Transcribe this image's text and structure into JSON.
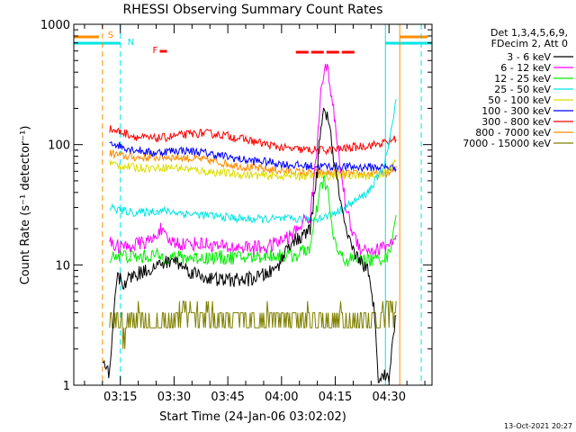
{
  "chart_data": {
    "type": "line",
    "title": "RHESSI Observing Summary Count Rates",
    "xlabel": "Start Time (24-Jan-06 03:02:02)",
    "ylabel": "Count Rate (s⁻¹ detector⁻¹)",
    "yscale": "log",
    "ylim": [
      1,
      1000
    ],
    "xlim_minutes_after_start": [
      0,
      100
    ],
    "xticks": [
      {
        "label": "03:15",
        "min": 13
      },
      {
        "label": "03:30",
        "min": 28
      },
      {
        "label": "03:45",
        "min": 43
      },
      {
        "label": "04:00",
        "min": 58
      },
      {
        "label": "04:15",
        "min": 73
      },
      {
        "label": "04:30",
        "min": 88
      }
    ],
    "yticks": [
      {
        "label": "1",
        "value": 1
      },
      {
        "label": "10",
        "value": 10
      },
      {
        "label": "100",
        "value": 100
      },
      {
        "label": "1000",
        "value": 1000
      }
    ],
    "legend": {
      "placement": "right",
      "header": [
        "Det 1,3,4,5,6,9,",
        "FDecim 2, Att 0"
      ]
    },
    "flags": [
      {
        "label": "S",
        "color": "#ff8c00"
      },
      {
        "label": "N",
        "color": "#00e5e5"
      },
      {
        "label": "F",
        "color": "#ff0000"
      }
    ],
    "series": [
      {
        "name": "3 - 6 keV",
        "color": "#000000",
        "points": [
          [
            8,
            1.5
          ],
          [
            10,
            1.2
          ],
          [
            12,
            8
          ],
          [
            14,
            7
          ],
          [
            16,
            8
          ],
          [
            20,
            9
          ],
          [
            24,
            10
          ],
          [
            28,
            11
          ],
          [
            32,
            9
          ],
          [
            36,
            8
          ],
          [
            40,
            7.5
          ],
          [
            44,
            7.5
          ],
          [
            48,
            7.5
          ],
          [
            52,
            8
          ],
          [
            56,
            9
          ],
          [
            58,
            11
          ],
          [
            60,
            15
          ],
          [
            62,
            16
          ],
          [
            64,
            17
          ],
          [
            66,
            20
          ],
          [
            68,
            60
          ],
          [
            69,
            150
          ],
          [
            70,
            200
          ],
          [
            71,
            160
          ],
          [
            72,
            100
          ],
          [
            74,
            40
          ],
          [
            76,
            18
          ],
          [
            78,
            13
          ],
          [
            80,
            11
          ],
          [
            82,
            9
          ],
          [
            84,
            4
          ],
          [
            85,
            1.2
          ],
          [
            88,
            1.2
          ],
          [
            90,
            4
          ]
        ]
      },
      {
        "name": "6 - 12 keV",
        "color": "#ff00ff",
        "points": [
          [
            10,
            15
          ],
          [
            14,
            14
          ],
          [
            18,
            15
          ],
          [
            22,
            16
          ],
          [
            24,
            20
          ],
          [
            26,
            16
          ],
          [
            30,
            15
          ],
          [
            36,
            15
          ],
          [
            42,
            14
          ],
          [
            48,
            14
          ],
          [
            54,
            14
          ],
          [
            58,
            16
          ],
          [
            60,
            17
          ],
          [
            62,
            19
          ],
          [
            64,
            23
          ],
          [
            66,
            25
          ],
          [
            68,
            100
          ],
          [
            69,
            300
          ],
          [
            70,
            450
          ],
          [
            71,
            400
          ],
          [
            72,
            250
          ],
          [
            74,
            80
          ],
          [
            76,
            30
          ],
          [
            78,
            18
          ],
          [
            80,
            14
          ],
          [
            84,
            13
          ],
          [
            88,
            15
          ],
          [
            90,
            16
          ]
        ]
      },
      {
        "name": "12 - 25 keV",
        "color": "#00ee00",
        "points": [
          [
            10,
            12
          ],
          [
            14,
            12
          ],
          [
            18,
            11.5
          ],
          [
            22,
            12
          ],
          [
            26,
            11.5
          ],
          [
            30,
            11.5
          ],
          [
            36,
            11.5
          ],
          [
            42,
            11.5
          ],
          [
            48,
            11.5
          ],
          [
            54,
            12
          ],
          [
            58,
            12
          ],
          [
            62,
            12
          ],
          [
            66,
            14
          ],
          [
            68,
            30
          ],
          [
            69,
            45
          ],
          [
            70,
            50
          ],
          [
            71,
            40
          ],
          [
            72,
            20
          ],
          [
            74,
            12
          ],
          [
            76,
            11
          ],
          [
            80,
            11
          ],
          [
            84,
            11
          ],
          [
            88,
            12
          ],
          [
            90,
            28
          ]
        ]
      },
      {
        "name": "25 - 50 keV",
        "color": "#00e5e5",
        "points": [
          [
            10,
            30
          ],
          [
            14,
            28
          ],
          [
            18,
            27
          ],
          [
            22,
            28
          ],
          [
            26,
            28
          ],
          [
            30,
            27
          ],
          [
            36,
            26
          ],
          [
            42,
            25
          ],
          [
            48,
            24
          ],
          [
            54,
            24
          ],
          [
            60,
            24
          ],
          [
            66,
            24
          ],
          [
            70,
            25
          ],
          [
            74,
            28
          ],
          [
            78,
            33
          ],
          [
            82,
            40
          ],
          [
            86,
            60
          ],
          [
            88,
            100
          ],
          [
            90,
            230
          ]
        ]
      },
      {
        "name": "50 - 100 keV",
        "color": "#dddd00",
        "points": [
          [
            10,
            70
          ],
          [
            14,
            66
          ],
          [
            18,
            64
          ],
          [
            22,
            64
          ],
          [
            26,
            65
          ],
          [
            30,
            64
          ],
          [
            36,
            60
          ],
          [
            42,
            58
          ],
          [
            48,
            56
          ],
          [
            54,
            55
          ],
          [
            60,
            55
          ],
          [
            66,
            55
          ],
          [
            72,
            55
          ],
          [
            78,
            55
          ],
          [
            84,
            55
          ],
          [
            88,
            60
          ],
          [
            90,
            75
          ]
        ]
      },
      {
        "name": "100 - 300 keV",
        "color": "#0000ff",
        "points": [
          [
            10,
            105
          ],
          [
            14,
            95
          ],
          [
            18,
            90
          ],
          [
            22,
            85
          ],
          [
            26,
            88
          ],
          [
            30,
            90
          ],
          [
            36,
            86
          ],
          [
            42,
            80
          ],
          [
            48,
            74
          ],
          [
            54,
            72
          ],
          [
            60,
            68
          ],
          [
            66,
            66
          ],
          [
            72,
            66
          ],
          [
            78,
            65
          ],
          [
            84,
            65
          ],
          [
            90,
            65
          ]
        ]
      },
      {
        "name": "300 - 800 keV",
        "color": "#ff0000",
        "points": [
          [
            10,
            135
          ],
          [
            14,
            125
          ],
          [
            18,
            115
          ],
          [
            22,
            112
          ],
          [
            26,
            115
          ],
          [
            30,
            120
          ],
          [
            36,
            125
          ],
          [
            42,
            120
          ],
          [
            48,
            110
          ],
          [
            54,
            100
          ],
          [
            60,
            92
          ],
          [
            66,
            90
          ],
          [
            72,
            90
          ],
          [
            78,
            95
          ],
          [
            84,
            100
          ],
          [
            88,
            105
          ],
          [
            90,
            115
          ]
        ]
      },
      {
        "name": "800 - 7000 keV",
        "color": "#ff8c00",
        "points": [
          [
            10,
            85
          ],
          [
            14,
            80
          ],
          [
            18,
            78
          ],
          [
            22,
            78
          ],
          [
            26,
            79
          ],
          [
            30,
            78
          ],
          [
            36,
            75
          ],
          [
            42,
            70
          ],
          [
            48,
            65
          ],
          [
            54,
            62
          ],
          [
            60,
            60
          ],
          [
            66,
            58
          ],
          [
            72,
            58
          ],
          [
            78,
            57
          ],
          [
            84,
            57
          ],
          [
            88,
            58
          ],
          [
            90,
            62
          ]
        ]
      },
      {
        "name": "7000 - 15000 keV",
        "color": "#808000",
        "points": [
          [
            10,
            3.5
          ],
          [
            14,
            3
          ],
          [
            18,
            3.5
          ],
          [
            22,
            3
          ],
          [
            26,
            3.5
          ],
          [
            30,
            4
          ],
          [
            36,
            4
          ],
          [
            42,
            3.5
          ],
          [
            48,
            3.5
          ],
          [
            54,
            3.5
          ],
          [
            60,
            3.5
          ],
          [
            66,
            3.5
          ],
          [
            72,
            3.5
          ],
          [
            78,
            3.5
          ],
          [
            84,
            3.5
          ],
          [
            88,
            4
          ],
          [
            90,
            4
          ]
        ]
      }
    ]
  },
  "footer": {
    "date": "13-Oct-2021 20:27"
  }
}
